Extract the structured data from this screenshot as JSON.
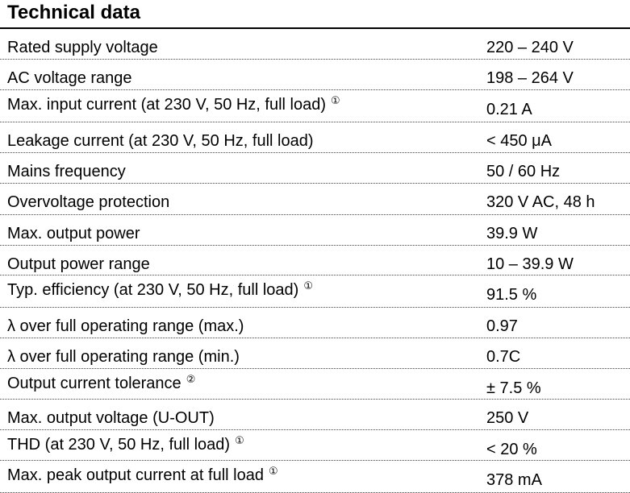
{
  "title": "Technical data",
  "rows": [
    {
      "label": "Rated supply voltage",
      "value": "220 – 240 V",
      "note": ""
    },
    {
      "label": "AC voltage range",
      "value": "198 – 264 V",
      "note": ""
    },
    {
      "label": "Max. input current (at 230 V, 50 Hz, full load)",
      "value": "0.21 A",
      "note": "①"
    },
    {
      "label": "Leakage current (at 230 V, 50 Hz, full load)",
      "value": "< 450 μA",
      "note": ""
    },
    {
      "label": "Mains frequency",
      "value": "50 / 60 Hz",
      "note": ""
    },
    {
      "label": "Overvoltage protection",
      "value": "320 V AC, 48 h",
      "note": ""
    },
    {
      "label": "Max. output power",
      "value": "39.9 W",
      "note": ""
    },
    {
      "label": "Output power range",
      "value": "10 – 39.9 W",
      "note": ""
    },
    {
      "label": "Typ. efficiency (at 230 V, 50 Hz, full load)",
      "value": "91.5 %",
      "note": "①"
    },
    {
      "label": "λ over full operating range (max.)",
      "value": "0.97",
      "note": ""
    },
    {
      "label": "λ over full operating range (min.)",
      "value": "0.7C",
      "note": ""
    },
    {
      "label": "Output current tolerance",
      "value": "± 7.5 %",
      "note": "②"
    },
    {
      "label": "Max. output voltage (U-OUT)",
      "value": "250 V",
      "note": ""
    },
    {
      "label": "THD (at 230 V, 50 Hz, full load)",
      "value": "< 20 %",
      "note": "①"
    },
    {
      "label": "Max. peak output current at full load",
      "value": "378 mA",
      "note": "①"
    }
  ]
}
